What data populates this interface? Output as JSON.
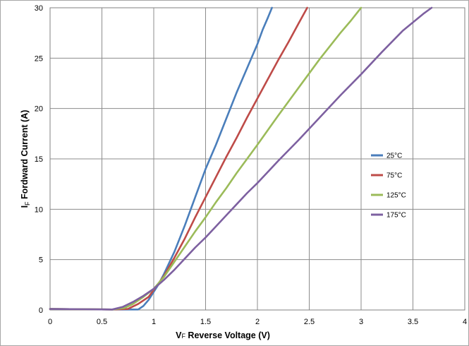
{
  "chart_data": {
    "type": "line",
    "xlabel_main": "V",
    "xlabel_sub": "F",
    "xlabel_rest": " Reverse Voltage (V)",
    "ylabel_main": "I",
    "ylabel_sub": "F",
    "ylabel_rest": " Fordward Current (A)",
    "xlim": [
      0,
      4
    ],
    "ylim": [
      0,
      30
    ],
    "x_ticks": [
      "0",
      "0.5",
      "1",
      "1.5",
      "2",
      "2.5",
      "3",
      "3.5",
      "4"
    ],
    "y_ticks": [
      "0",
      "5",
      "10",
      "15",
      "20",
      "25",
      "30"
    ],
    "grid": true,
    "legend_position": "right",
    "series": [
      {
        "name": "25°C",
        "color": "#4a7ebb",
        "points": [
          [
            0,
            0.1
          ],
          [
            0.6,
            0.05
          ],
          [
            0.85,
            0.05
          ],
          [
            0.9,
            0.4
          ],
          [
            0.95,
            1.0
          ],
          [
            1.0,
            1.8
          ],
          [
            1.05,
            2.6
          ],
          [
            1.1,
            3.6
          ],
          [
            1.2,
            5.8
          ],
          [
            1.3,
            8.4
          ],
          [
            1.4,
            11.2
          ],
          [
            1.5,
            14.0
          ],
          [
            1.6,
            16.4
          ],
          [
            1.7,
            19.0
          ],
          [
            1.8,
            21.6
          ],
          [
            1.9,
            24.0
          ],
          [
            2.0,
            26.4
          ],
          [
            2.05,
            27.8
          ],
          [
            2.1,
            29.0
          ],
          [
            2.14,
            30.0
          ]
        ]
      },
      {
        "name": "75°C",
        "color": "#be4b48",
        "points": [
          [
            0,
            0.1
          ],
          [
            0.6,
            0.05
          ],
          [
            0.75,
            0.1
          ],
          [
            0.85,
            0.6
          ],
          [
            0.95,
            1.3
          ],
          [
            1.0,
            2.0
          ],
          [
            1.1,
            3.4
          ],
          [
            1.2,
            5.2
          ],
          [
            1.3,
            7.1
          ],
          [
            1.4,
            9.2
          ],
          [
            1.5,
            11.2
          ],
          [
            1.6,
            13.2
          ],
          [
            1.7,
            15.2
          ],
          [
            1.8,
            17.1
          ],
          [
            1.9,
            19.1
          ],
          [
            2.0,
            21.0
          ],
          [
            2.1,
            22.9
          ],
          [
            2.2,
            24.8
          ],
          [
            2.3,
            26.6
          ],
          [
            2.4,
            28.5
          ],
          [
            2.48,
            30.0
          ]
        ]
      },
      {
        "name": "125°C",
        "color": "#9bbb59",
        "points": [
          [
            0,
            0.1
          ],
          [
            0.6,
            0.05
          ],
          [
            0.72,
            0.2
          ],
          [
            0.8,
            0.6
          ],
          [
            0.9,
            1.3
          ],
          [
            1.0,
            2.1
          ],
          [
            1.1,
            3.3
          ],
          [
            1.2,
            4.8
          ],
          [
            1.3,
            6.3
          ],
          [
            1.4,
            7.8
          ],
          [
            1.5,
            9.2
          ],
          [
            1.6,
            10.7
          ],
          [
            1.7,
            12.1
          ],
          [
            1.8,
            13.6
          ],
          [
            1.9,
            15.0
          ],
          [
            2.0,
            16.4
          ],
          [
            2.2,
            19.3
          ],
          [
            2.4,
            22.1
          ],
          [
            2.6,
            24.9
          ],
          [
            2.8,
            27.5
          ],
          [
            2.9,
            28.7
          ],
          [
            3.0,
            30.0
          ]
        ]
      },
      {
        "name": "175°C",
        "color": "#7d60a0",
        "points": [
          [
            0,
            0.1
          ],
          [
            0.6,
            0.05
          ],
          [
            0.7,
            0.3
          ],
          [
            0.8,
            0.8
          ],
          [
            0.9,
            1.4
          ],
          [
            1.0,
            2.1
          ],
          [
            1.1,
            3.0
          ],
          [
            1.2,
            4.0
          ],
          [
            1.3,
            5.1
          ],
          [
            1.4,
            6.2
          ],
          [
            1.5,
            7.2
          ],
          [
            1.6,
            8.3
          ],
          [
            1.7,
            9.4
          ],
          [
            1.8,
            10.5
          ],
          [
            1.9,
            11.6
          ],
          [
            2.0,
            12.6
          ],
          [
            2.2,
            14.8
          ],
          [
            2.4,
            16.9
          ],
          [
            2.6,
            19.1
          ],
          [
            2.8,
            21.3
          ],
          [
            3.0,
            23.4
          ],
          [
            3.2,
            25.6
          ],
          [
            3.4,
            27.7
          ],
          [
            3.6,
            29.4
          ],
          [
            3.68,
            30.0
          ]
        ]
      }
    ]
  }
}
